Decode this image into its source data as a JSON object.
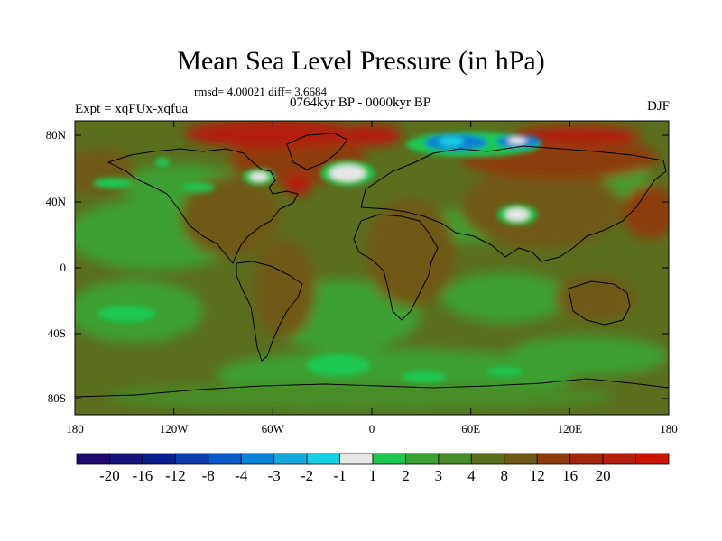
{
  "title": "Mean Sea Level Pressure (in hPa)",
  "stats": "rmsd= 4.00021 diff= 3.6684",
  "period": "0764kyr BP - 0000kyr BP",
  "experiment": "Expt = xqFUx-xqfua",
  "season": "DJF",
  "lat_labels": [
    "80N",
    "40N",
    "0",
    "40S",
    "80S"
  ],
  "lon_labels": [
    "180",
    "120W",
    "60W",
    "0",
    "60E",
    "120E",
    "180"
  ],
  "colorbar": {
    "labels": [
      "-20",
      "-16",
      "-12",
      "-8",
      "-4",
      "-3",
      "-2",
      "-1",
      "1",
      "2",
      "3",
      "4",
      "8",
      "12",
      "16",
      "20"
    ],
    "colors": [
      "#1e0a6e",
      "#141478",
      "#0a1e8c",
      "#0a3caa",
      "#0a5ac8",
      "#0a82d2",
      "#14aadc",
      "#14d2e6",
      "#e6e6e6",
      "#1ec850",
      "#3ca032",
      "#468c28",
      "#5a6e1e",
      "#6e5a14",
      "#8c3c0a",
      "#a0280a",
      "#b41e0a",
      "#c81400"
    ]
  },
  "map_colors": {
    "base": "#5a6e1e",
    "low_green": "#3ca032",
    "mid_green": "#468c28",
    "bright_green": "#1ec850",
    "brown": "#6e5a14",
    "dark_brown": "#8c3c0a",
    "red": "#b41e0a",
    "blue": "#0a82d2",
    "white": "#e6e6e6",
    "cyan": "#14d2e6"
  }
}
